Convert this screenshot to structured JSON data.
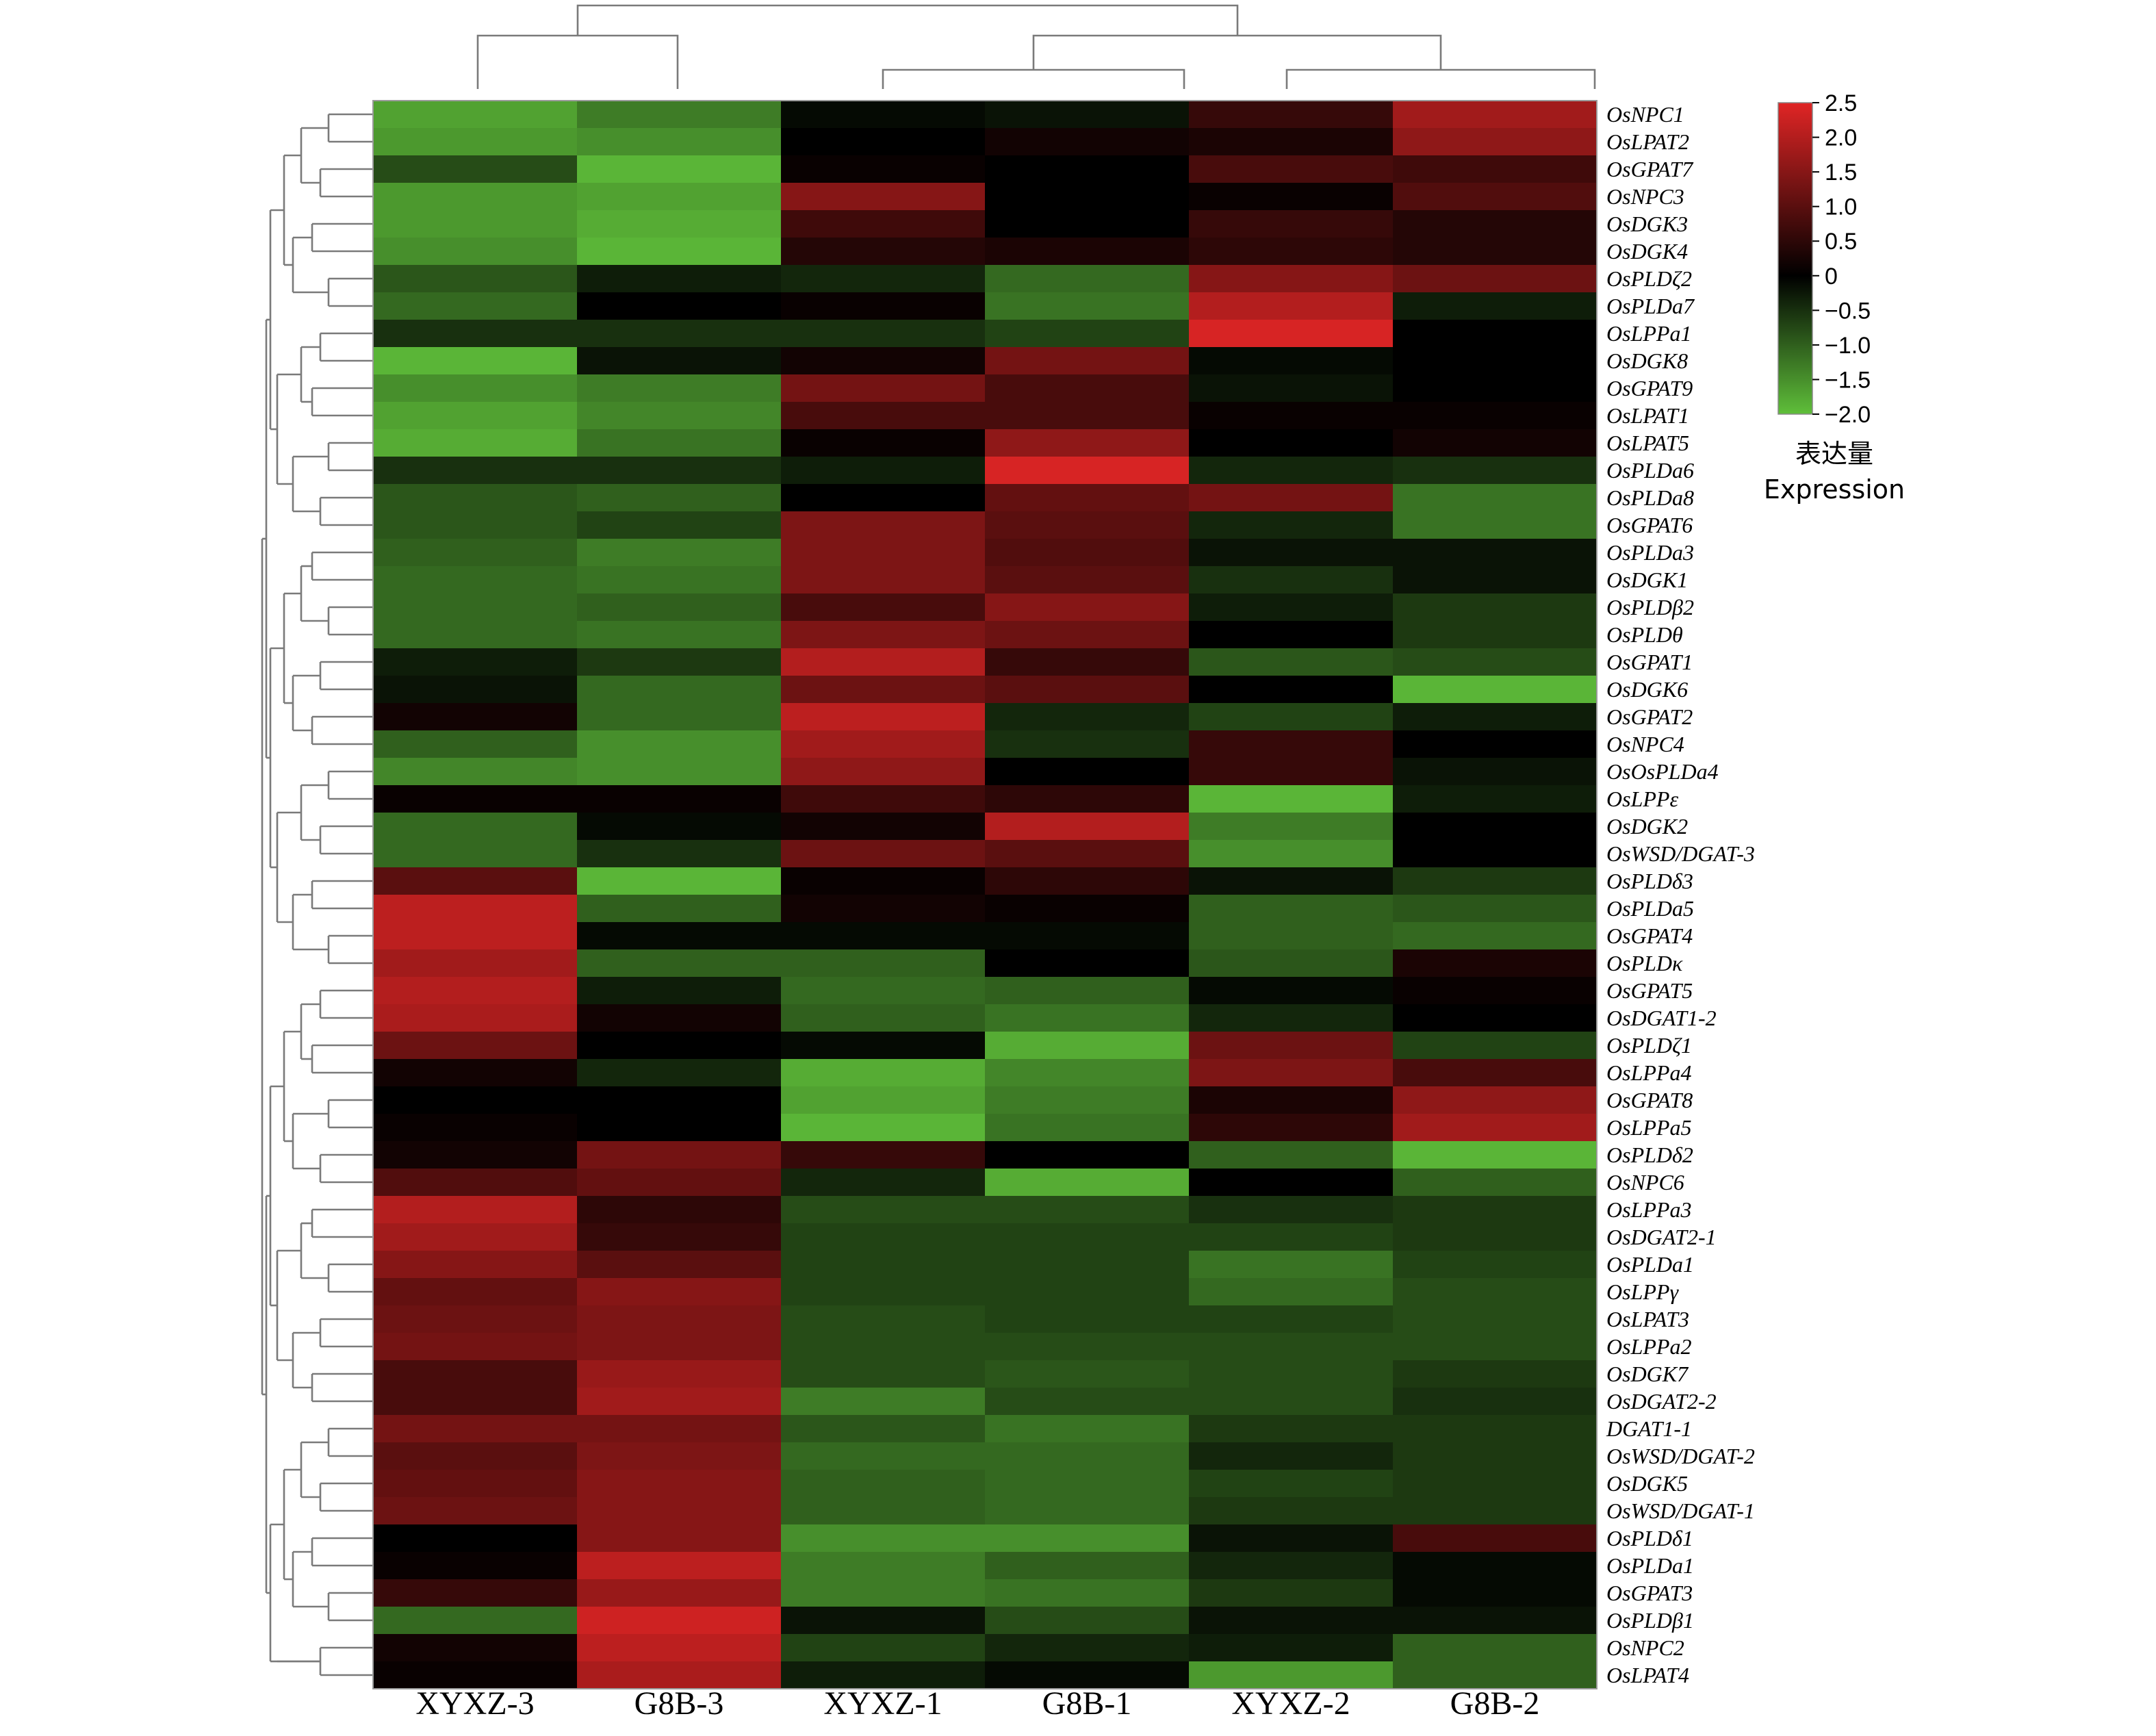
{
  "chart_data": {
    "type": "heatmap",
    "colormap": [
      "#5fbf3a",
      "#000000",
      "#e02525"
    ],
    "columns": [
      "XYXZ-3",
      "G8B-3",
      "XYXZ-1",
      "G8B-1",
      "XYXZ-2",
      "G8B-2"
    ],
    "rows": [
      "OsNPC1",
      "OsLPAT2",
      "OsGPAT7",
      "OsNPC3",
      "OsDGK3",
      "OsDGK4",
      "OsPLDζ2",
      "OsPLDa7",
      "OsLPPa1",
      "OsDGK8",
      "OsGPAT9",
      "OsLPAT1",
      "OsLPAT5",
      "OsPLDa6",
      "OsPLDa8",
      "OsGPAT6",
      "OsPLDa3",
      "OsDGK1",
      "OsPLDβ2",
      "OsPLDθ",
      "OsGPAT1",
      "OsDGK6",
      "OsGPAT2",
      "OsNPC4",
      "OsOsPLDa4",
      "OsLPPε",
      "OsDGK2",
      "OsWSD/DGAT-3",
      "OsPLDδ3",
      "OsPLDa5",
      "OsGPAT4",
      "OsPLDκ",
      "OsGPAT5",
      "OsDGAT1-2",
      "OsPLDζ1",
      "OsLPPa4",
      "OsGPAT8",
      "OsLPPa5",
      "OsPLDδ2",
      "OsNPC6",
      "OsLPPa3",
      "OsDGAT2-1",
      "OsPLDa1",
      "OsLPPγ",
      "OsLPAT3",
      "OsLPPa2",
      "OsDGK7",
      "OsDGAT2-2",
      "DGAT1-1",
      "OsWSD/DGAT-2",
      "OsDGK5",
      "OsWSD/DGAT-1",
      "OsPLDδ1",
      "OsPLDa1",
      "OsGPAT3",
      "OsPLDβ1",
      "OsNPC2",
      "OsLPAT4"
    ],
    "values": [
      [
        -1.7,
        -1.3,
        -0.1,
        -0.2,
        0.6,
        1.8
      ],
      [
        -1.6,
        -1.5,
        0.0,
        0.2,
        0.3,
        1.6
      ],
      [
        -0.8,
        -1.9,
        0.1,
        0.0,
        0.8,
        0.7
      ],
      [
        -1.6,
        -1.7,
        1.5,
        0.0,
        0.1,
        0.9
      ],
      [
        -1.6,
        -1.8,
        0.7,
        0.0,
        0.6,
        0.4
      ],
      [
        -1.5,
        -1.9,
        0.4,
        0.3,
        0.5,
        0.4
      ],
      [
        -0.9,
        -0.3,
        -0.4,
        -1.1,
        1.5,
        1.2
      ],
      [
        -1.1,
        0.0,
        0.1,
        -1.2,
        2.0,
        -0.3
      ],
      [
        -0.5,
        -0.5,
        -0.5,
        -0.7,
        2.4,
        0.0
      ],
      [
        -1.9,
        -0.2,
        0.2,
        1.3,
        -0.1,
        0.0
      ],
      [
        -1.5,
        -1.3,
        1.3,
        0.8,
        -0.2,
        0.0
      ],
      [
        -1.7,
        -1.4,
        0.8,
        0.8,
        0.1,
        0.1
      ],
      [
        -1.8,
        -1.2,
        0.1,
        1.6,
        0.0,
        0.2
      ],
      [
        -0.5,
        -0.5,
        -0.3,
        2.4,
        -0.4,
        -0.5
      ],
      [
        -0.9,
        -1.0,
        0.0,
        1.1,
        1.3,
        -1.2
      ],
      [
        -0.9,
        -0.7,
        1.4,
        1.0,
        -0.4,
        -1.2
      ],
      [
        -1.0,
        -1.3,
        1.4,
        0.9,
        -0.2,
        -0.2
      ],
      [
        -1.1,
        -1.2,
        1.4,
        1.0,
        -0.5,
        -0.2
      ],
      [
        -1.1,
        -1.0,
        0.8,
        1.5,
        -0.3,
        -0.6
      ],
      [
        -1.1,
        -1.2,
        1.4,
        1.2,
        0.0,
        -0.6
      ],
      [
        -0.3,
        -0.6,
        2.0,
        0.6,
        -0.9,
        -0.8
      ],
      [
        -0.2,
        -1.1,
        1.2,
        1.0,
        0.0,
        -1.9
      ],
      [
        0.2,
        -1.1,
        2.1,
        -0.4,
        -0.7,
        -0.3
      ],
      [
        -1.0,
        -1.5,
        1.8,
        -0.5,
        0.6,
        0.0
      ],
      [
        -1.4,
        -1.5,
        1.6,
        0.0,
        0.6,
        -0.2
      ],
      [
        0.1,
        0.1,
        0.7,
        0.5,
        -1.9,
        -0.3
      ],
      [
        -1.1,
        -0.1,
        0.2,
        2.0,
        -1.3,
        0.0
      ],
      [
        -1.1,
        -0.5,
        1.2,
        1.0,
        -1.5,
        0.0
      ],
      [
        1.0,
        -1.9,
        0.1,
        0.5,
        -0.2,
        -0.6
      ],
      [
        2.1,
        -1.0,
        0.2,
        0.1,
        -1.0,
        -0.9
      ],
      [
        2.1,
        -0.1,
        -0.1,
        -0.1,
        -1.0,
        -1.1
      ],
      [
        1.8,
        -1.0,
        -1.0,
        0.0,
        -0.9,
        0.3
      ],
      [
        2.0,
        -0.3,
        -1.1,
        -1.0,
        -0.1,
        0.1
      ],
      [
        1.9,
        0.2,
        -1.0,
        -1.2,
        -0.4,
        0.0
      ],
      [
        1.2,
        0.0,
        -0.1,
        -1.8,
        1.2,
        -0.7
      ],
      [
        0.2,
        -0.4,
        -1.8,
        -1.4,
        1.4,
        0.8
      ],
      [
        0.0,
        0.0,
        -1.7,
        -1.3,
        0.3,
        1.6
      ],
      [
        0.1,
        0.0,
        -1.9,
        -1.2,
        0.5,
        1.8
      ],
      [
        0.2,
        1.3,
        0.6,
        0.0,
        -1.0,
        -1.9
      ],
      [
        0.9,
        1.1,
        -0.4,
        -1.8,
        0.0,
        -1.0
      ],
      [
        2.0,
        0.5,
        -0.8,
        -0.8,
        -0.5,
        -0.6
      ],
      [
        1.8,
        0.6,
        -0.7,
        -0.7,
        -0.7,
        -0.6
      ],
      [
        1.5,
        1.0,
        -0.7,
        -0.7,
        -1.2,
        -0.7
      ],
      [
        1.1,
        1.5,
        -0.7,
        -0.7,
        -1.1,
        -0.8
      ],
      [
        1.2,
        1.4,
        -0.8,
        -0.7,
        -0.7,
        -0.8
      ],
      [
        1.3,
        1.4,
        -0.8,
        -0.8,
        -0.8,
        -0.8
      ],
      [
        0.8,
        1.7,
        -0.8,
        -0.9,
        -0.8,
        -0.6
      ],
      [
        0.8,
        1.8,
        -1.3,
        -0.8,
        -0.8,
        -0.5
      ],
      [
        1.3,
        1.3,
        -0.9,
        -1.2,
        -0.6,
        -0.6
      ],
      [
        1.0,
        1.4,
        -1.1,
        -1.1,
        -0.4,
        -0.6
      ],
      [
        1.1,
        1.5,
        -1.0,
        -1.1,
        -0.7,
        -0.6
      ],
      [
        1.2,
        1.5,
        -1.0,
        -1.1,
        -0.6,
        -0.6
      ],
      [
        0.0,
        1.5,
        -1.5,
        -1.5,
        -0.2,
        0.8
      ],
      [
        0.1,
        2.1,
        -1.3,
        -1.0,
        -0.4,
        -0.1
      ],
      [
        0.6,
        1.7,
        -1.3,
        -1.2,
        -0.6,
        -0.1
      ],
      [
        -1.1,
        2.3,
        -0.2,
        -0.8,
        -0.2,
        -0.2
      ],
      [
        0.2,
        2.1,
        -0.7,
        -0.4,
        -0.3,
        -1.0
      ],
      [
        0.1,
        1.9,
        -0.3,
        -0.1,
        -1.6,
        -1.0
      ]
    ],
    "colorbar": {
      "min": -2.0,
      "max": 2.5,
      "ticks": [
        2.5,
        2.0,
        1.5,
        1.0,
        0.5,
        0,
        -0.5,
        -1.0,
        -1.5,
        -2.0
      ],
      "tick_labels": [
        "2.5",
        "2.0",
        "1.5",
        "1.0",
        "0.5",
        "0",
        "−0.5",
        "−1.0",
        "−1.5",
        "−2.0"
      ],
      "title_zh": "表达量",
      "title_en": "Expression",
      "position": "top-right"
    },
    "column_dendrogram": "(XYXZ-3,G8B-3),((XYXZ-1,G8B-1),(XYXZ-2,G8B-2))",
    "row_dendrogram": "left"
  }
}
